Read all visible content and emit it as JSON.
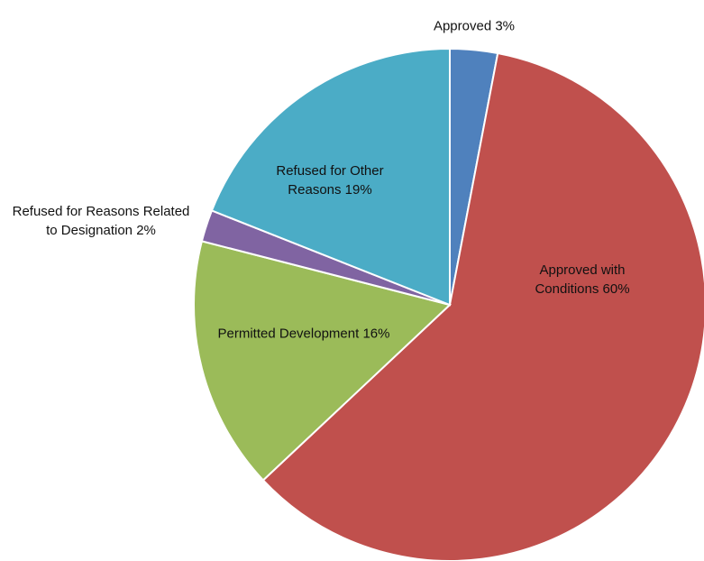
{
  "chart_data": {
    "type": "pie",
    "categories": [
      "Approved",
      "Approved with Conditions",
      "Permitted Development",
      "Refused for Reasons Related to Designation",
      "Refused for Other Reasons"
    ],
    "values": [
      3,
      60,
      16,
      2,
      19
    ],
    "value_labels": [
      "3%",
      "60%",
      "16%",
      "2%",
      "19%"
    ],
    "colors": [
      "#4f81bd",
      "#c0504d",
      "#9bbb59",
      "#8064a2",
      "#4bacc6"
    ]
  }
}
